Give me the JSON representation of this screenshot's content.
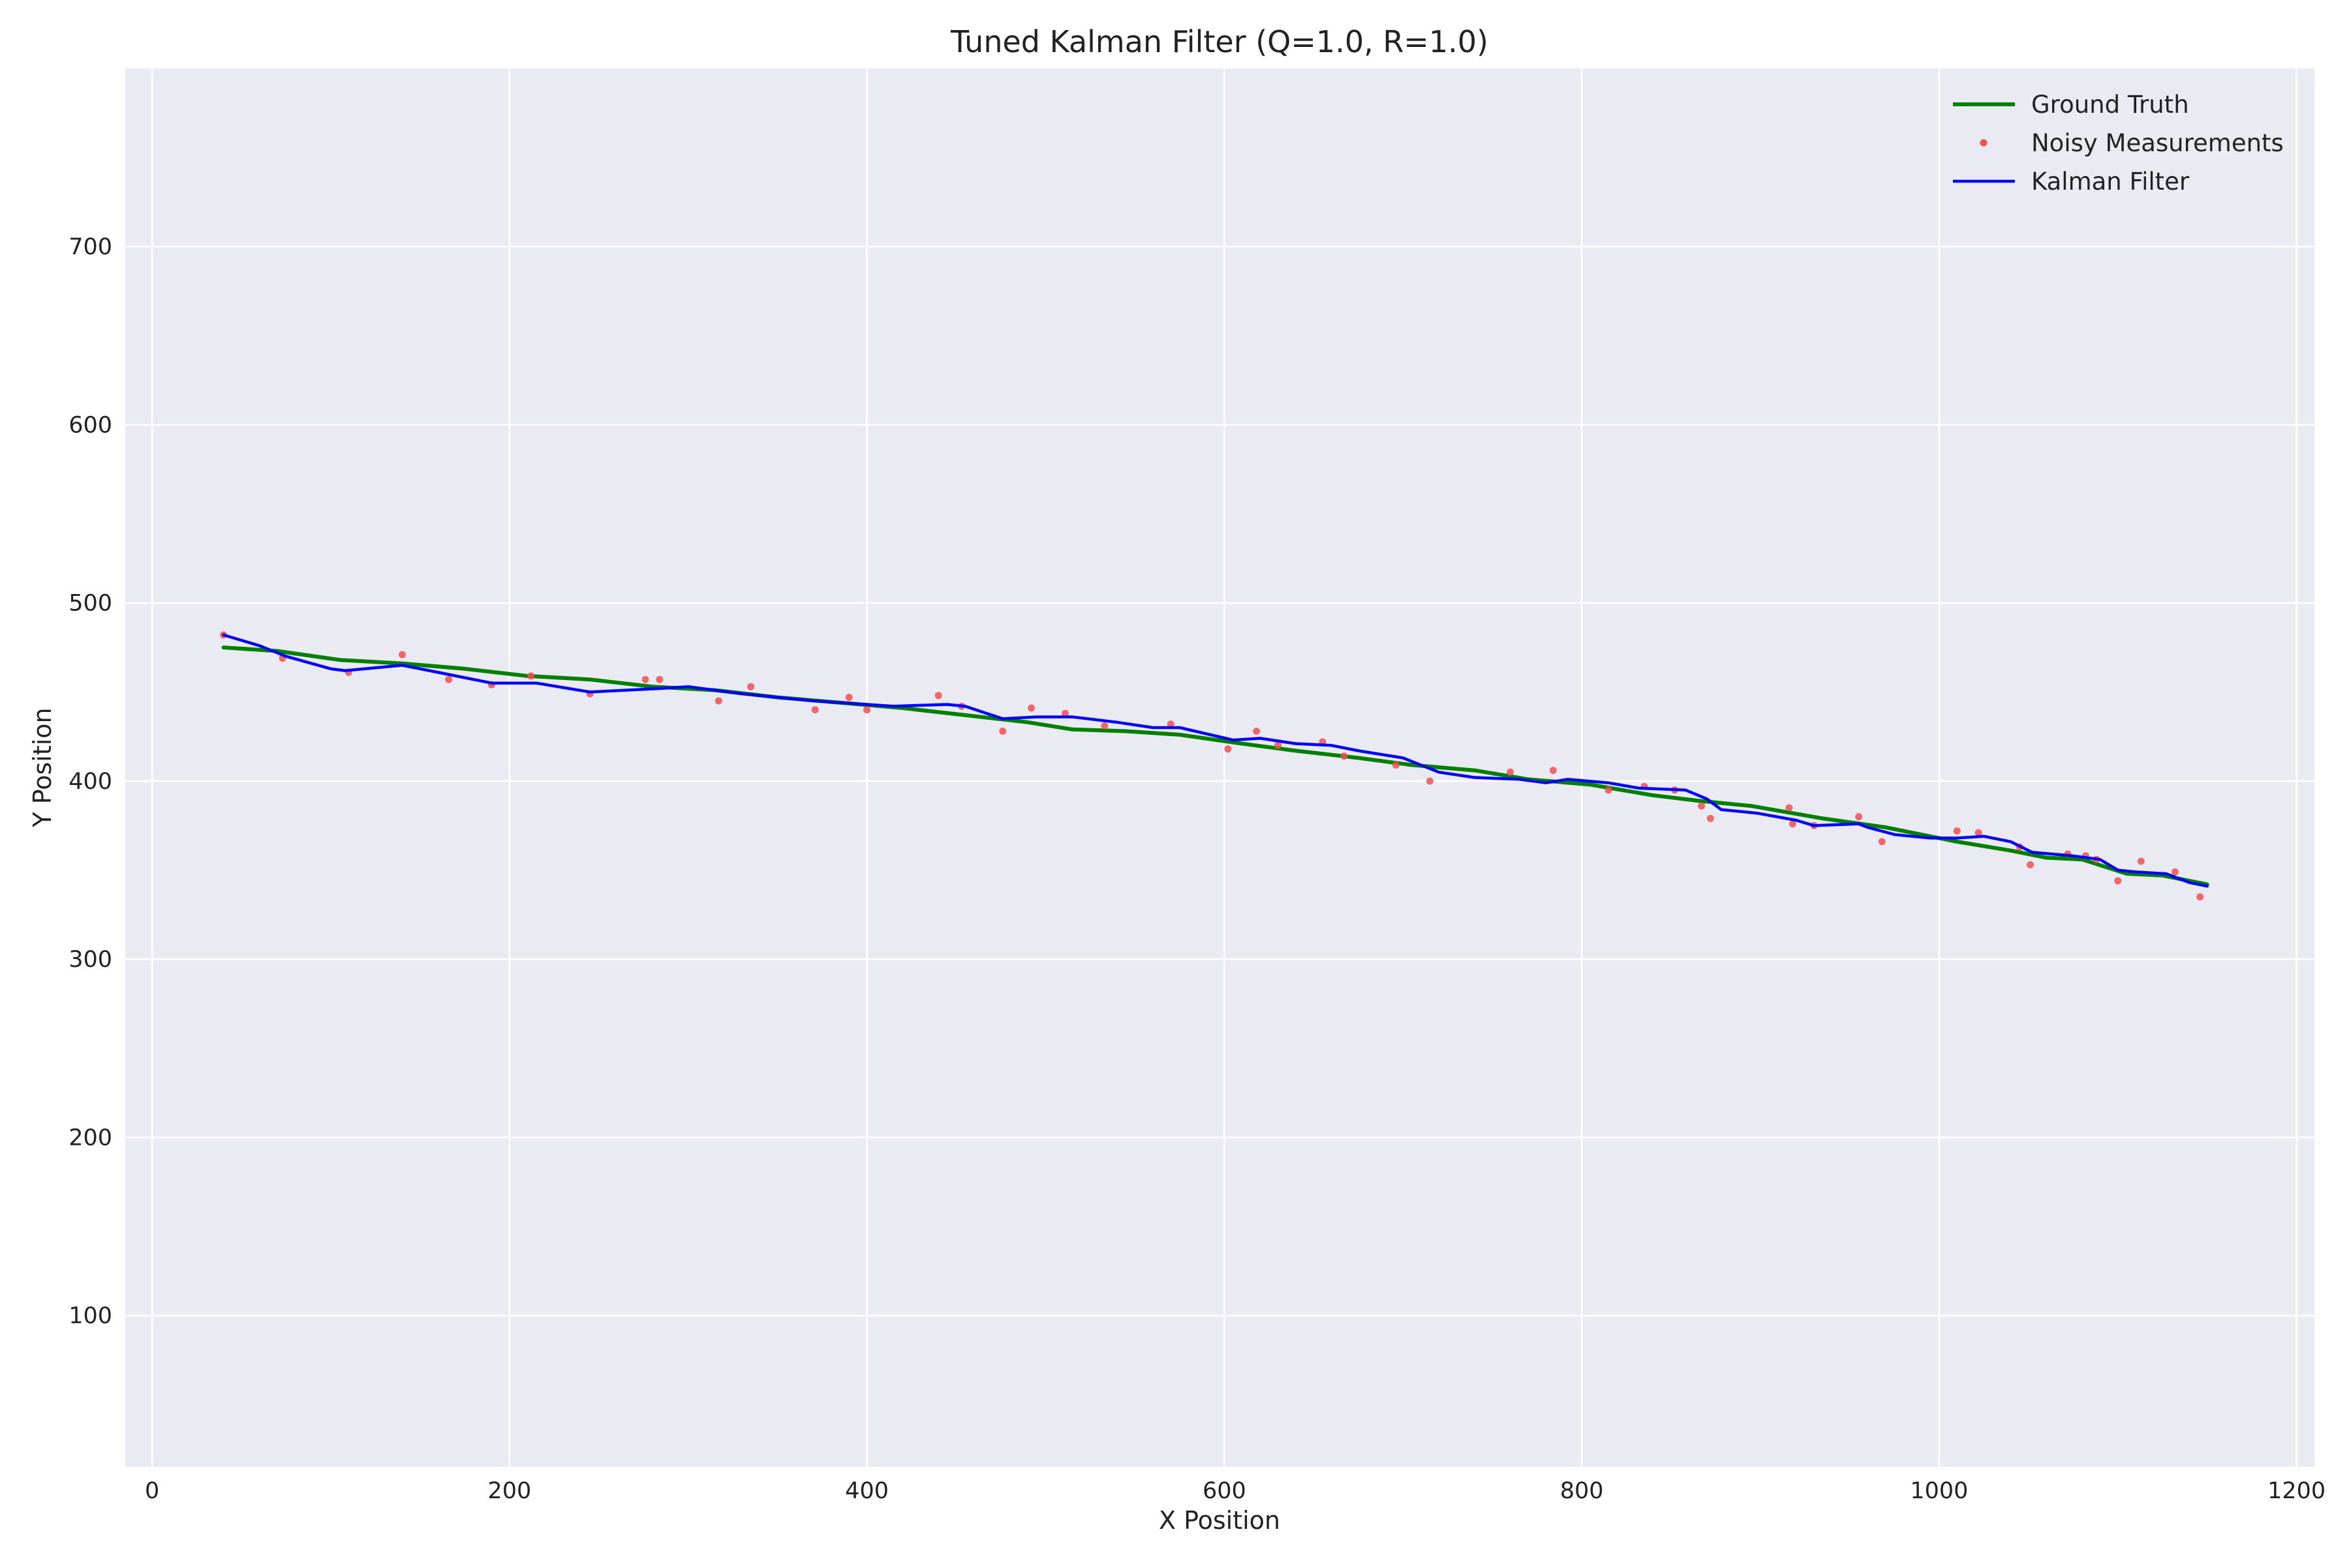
{
  "chart_data": {
    "type": "line",
    "title": "Tuned Kalman Filter (Q=1.0, R=1.0)",
    "xlabel": "X Position",
    "ylabel": "Y Position",
    "xlim": [
      -15,
      1210
    ],
    "ylim": [
      15,
      800
    ],
    "x_ticks": [
      0,
      200,
      400,
      600,
      800,
      1000,
      1200
    ],
    "y_ticks": [
      100,
      200,
      300,
      400,
      500,
      600,
      700
    ],
    "grid": true,
    "legend_position": "top-right",
    "colors": {
      "background": "#eaeaf2",
      "grid": "#ffffff"
    },
    "series": [
      {
        "name": "Ground Truth",
        "kind": "line",
        "color": "#008000",
        "points": [
          [
            40,
            475
          ],
          [
            70,
            473
          ],
          [
            105,
            468
          ],
          [
            140,
            466
          ],
          [
            175,
            463
          ],
          [
            210,
            459
          ],
          [
            245,
            457
          ],
          [
            280,
            453
          ],
          [
            315,
            451
          ],
          [
            350,
            447
          ],
          [
            385,
            444
          ],
          [
            420,
            441
          ],
          [
            455,
            437
          ],
          [
            490,
            433
          ],
          [
            515,
            429
          ],
          [
            545,
            428
          ],
          [
            575,
            426
          ],
          [
            610,
            421
          ],
          [
            640,
            417
          ],
          [
            675,
            413
          ],
          [
            705,
            409
          ],
          [
            740,
            406
          ],
          [
            770,
            401
          ],
          [
            805,
            398
          ],
          [
            840,
            392
          ],
          [
            865,
            389
          ],
          [
            895,
            386
          ],
          [
            935,
            379
          ],
          [
            970,
            374
          ],
          [
            1010,
            366
          ],
          [
            1040,
            361
          ],
          [
            1060,
            357
          ],
          [
            1080,
            356
          ],
          [
            1105,
            348
          ],
          [
            1125,
            347
          ],
          [
            1150,
            342
          ]
        ]
      },
      {
        "name": "Noisy Measurements",
        "kind": "scatter",
        "color": "#f05050",
        "points": [
          [
            40,
            482
          ],
          [
            73,
            469
          ],
          [
            110,
            461
          ],
          [
            140,
            471
          ],
          [
            166,
            457
          ],
          [
            190,
            454
          ],
          [
            212,
            459
          ],
          [
            245,
            449
          ],
          [
            276,
            457
          ],
          [
            284,
            457
          ],
          [
            317,
            445
          ],
          [
            335,
            453
          ],
          [
            371,
            440
          ],
          [
            390,
            447
          ],
          [
            400,
            440
          ],
          [
            440,
            448
          ],
          [
            453,
            442
          ],
          [
            476,
            428
          ],
          [
            492,
            441
          ],
          [
            511,
            438
          ],
          [
            533,
            431
          ],
          [
            570,
            432
          ],
          [
            602,
            418
          ],
          [
            618,
            428
          ],
          [
            630,
            420
          ],
          [
            655,
            422
          ],
          [
            667,
            414
          ],
          [
            696,
            409
          ],
          [
            715,
            400
          ],
          [
            760,
            405
          ],
          [
            784,
            406
          ],
          [
            815,
            395
          ],
          [
            835,
            397
          ],
          [
            852,
            395
          ],
          [
            867,
            386
          ],
          [
            872,
            379
          ],
          [
            916,
            385
          ],
          [
            918,
            376
          ],
          [
            930,
            375
          ],
          [
            955,
            380
          ],
          [
            968,
            366
          ],
          [
            1010,
            372
          ],
          [
            1022,
            371
          ],
          [
            1045,
            363
          ],
          [
            1051,
            353
          ],
          [
            1072,
            359
          ],
          [
            1082,
            358
          ],
          [
            1088,
            356
          ],
          [
            1100,
            344
          ],
          [
            1113,
            355
          ],
          [
            1132,
            349
          ],
          [
            1146,
            335
          ]
        ]
      },
      {
        "name": "Kalman Filter",
        "kind": "line",
        "color": "#0000ff",
        "points": [
          [
            40,
            482
          ],
          [
            60,
            476
          ],
          [
            75,
            470
          ],
          [
            100,
            463
          ],
          [
            108,
            462
          ],
          [
            140,
            465
          ],
          [
            165,
            460
          ],
          [
            190,
            455
          ],
          [
            215,
            455
          ],
          [
            245,
            450
          ],
          [
            285,
            452
          ],
          [
            300,
            453
          ],
          [
            330,
            449
          ],
          [
            370,
            445
          ],
          [
            400,
            443
          ],
          [
            415,
            442
          ],
          [
            445,
            443
          ],
          [
            455,
            442
          ],
          [
            476,
            435
          ],
          [
            495,
            436
          ],
          [
            515,
            436
          ],
          [
            540,
            433
          ],
          [
            560,
            430
          ],
          [
            575,
            430
          ],
          [
            605,
            423
          ],
          [
            620,
            424
          ],
          [
            640,
            421
          ],
          [
            660,
            420
          ],
          [
            675,
            417
          ],
          [
            700,
            413
          ],
          [
            720,
            405
          ],
          [
            740,
            402
          ],
          [
            765,
            401
          ],
          [
            780,
            399
          ],
          [
            792,
            401
          ],
          [
            815,
            399
          ],
          [
            832,
            396
          ],
          [
            858,
            395
          ],
          [
            870,
            390
          ],
          [
            878,
            384
          ],
          [
            898,
            382
          ],
          [
            920,
            378
          ],
          [
            930,
            375
          ],
          [
            955,
            376
          ],
          [
            960,
            374
          ],
          [
            975,
            370
          ],
          [
            995,
            368
          ],
          [
            1010,
            368
          ],
          [
            1025,
            369
          ],
          [
            1040,
            366
          ],
          [
            1052,
            360
          ],
          [
            1075,
            358
          ],
          [
            1090,
            356
          ],
          [
            1100,
            350
          ],
          [
            1110,
            349
          ],
          [
            1127,
            348
          ],
          [
            1140,
            343
          ],
          [
            1150,
            341
          ]
        ]
      }
    ]
  }
}
